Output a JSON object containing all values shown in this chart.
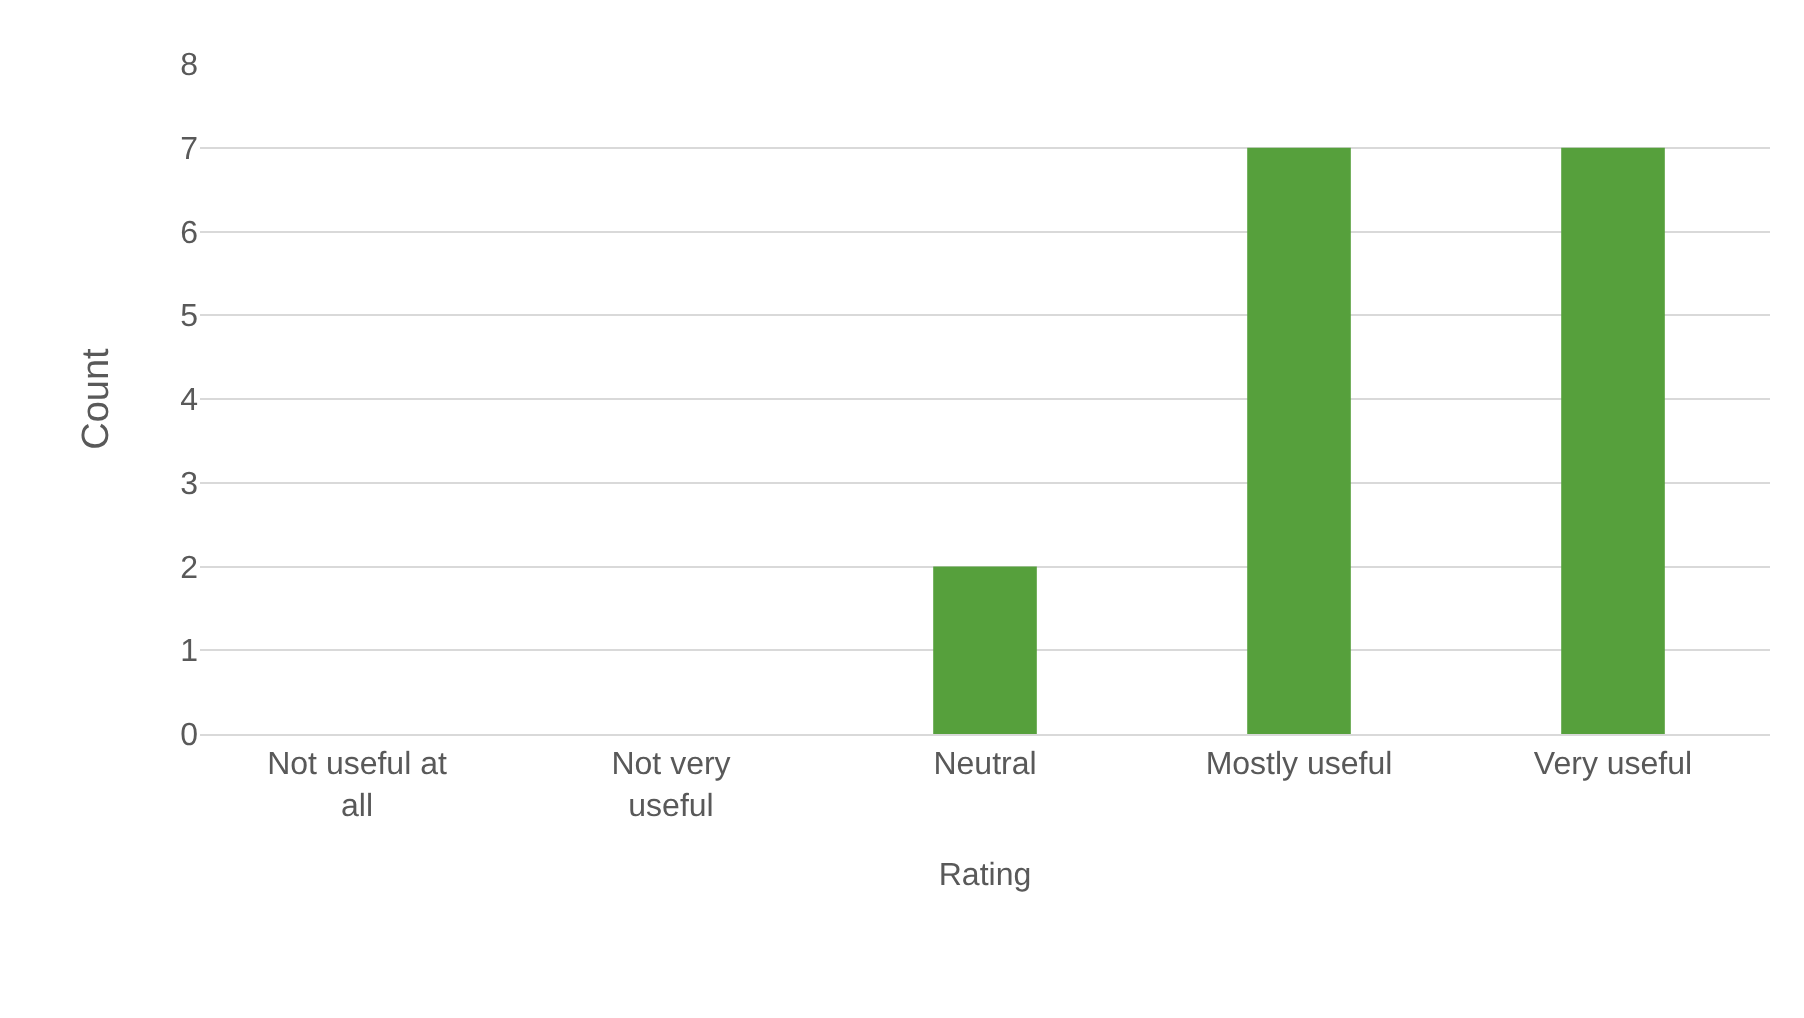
{
  "chart_data": {
    "type": "bar",
    "xlabel": "Rating",
    "ylabel": "Count",
    "categories": [
      "Not useful at all",
      "Not very useful",
      "Neutral",
      "Mostly useful",
      "Very useful"
    ],
    "values": [
      0,
      0,
      2,
      7,
      7
    ],
    "color": "#56a03c",
    "ylim": [
      0,
      8
    ],
    "yticks": [
      0,
      1,
      2,
      3,
      4,
      5,
      6,
      7,
      8
    ],
    "grid": "y",
    "legend": false
  }
}
